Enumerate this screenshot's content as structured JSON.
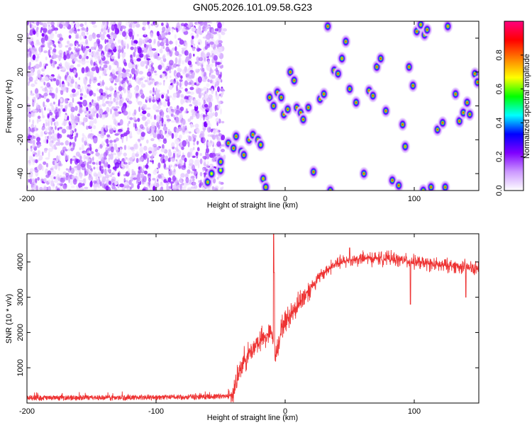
{
  "figure": {
    "title": "GN05.2026.101.09.58.G23"
  },
  "chart_data": [
    {
      "type": "heatmap",
      "name": "spectrogram",
      "xlabel": "Height of straight line (km)",
      "ylabel": "Frequency (Hz)",
      "xlim": [
        -200,
        150
      ],
      "ylim": [
        -50,
        50
      ],
      "xticks": [
        -200,
        -100,
        0,
        100
      ],
      "xtick_labels": [
        "-200",
        "-100",
        "0",
        "100"
      ],
      "yticks": [
        -40,
        -20,
        0,
        20,
        40
      ],
      "ytick_labels": [
        "-40",
        "-20",
        "0",
        "20",
        "40"
      ],
      "colorbar": {
        "label": "Normalized spectral amplitude",
        "range": [
          0,
          1
        ],
        "ticks": [
          0,
          0.2,
          0.4,
          0.6,
          0.8
        ],
        "tick_labels": [
          "0.0",
          "0.2",
          "0.4",
          "0.6",
          "0.8"
        ],
        "colormap": [
          "#ffffff",
          "#cc99ff",
          "#8000ff",
          "#0000ff",
          "#00ffff",
          "#00ff00",
          "#ffff00",
          "#ff8000",
          "#ff0000",
          "#ff0080"
        ]
      },
      "noise_region_x": [
        -200,
        -48
      ],
      "blobs": [
        {
          "x": -60,
          "y": -45,
          "v": 0.35
        },
        {
          "x": -57,
          "y": -40,
          "v": 0.3
        },
        {
          "x": -50,
          "y": -38,
          "v": 0.3
        },
        {
          "x": -50,
          "y": -33,
          "v": 0.35
        },
        {
          "x": -44,
          "y": -22,
          "v": 0.55
        },
        {
          "x": -40,
          "y": -25,
          "v": 0.5
        },
        {
          "x": -38,
          "y": -18,
          "v": 0.5
        },
        {
          "x": -34,
          "y": -27,
          "v": 0.55
        },
        {
          "x": -32,
          "y": -29,
          "v": 0.6
        },
        {
          "x": -28,
          "y": -20,
          "v": 0.5
        },
        {
          "x": -25,
          "y": -17,
          "v": 0.5
        },
        {
          "x": -21,
          "y": -20,
          "v": 0.5
        },
        {
          "x": -19,
          "y": -23,
          "v": 0.45
        },
        {
          "x": -17,
          "y": -43,
          "v": 0.35
        },
        {
          "x": -15,
          "y": -48,
          "v": 0.35
        },
        {
          "x": -12,
          "y": 5,
          "v": 0.5
        },
        {
          "x": -9,
          "y": 0,
          "v": 0.55
        },
        {
          "x": -6,
          "y": 8,
          "v": 0.5
        },
        {
          "x": -3,
          "y": 5,
          "v": 0.5
        },
        {
          "x": -1,
          "y": -5,
          "v": 0.55
        },
        {
          "x": 2,
          "y": -2,
          "v": 0.5
        },
        {
          "x": 4,
          "y": 20,
          "v": 0.5
        },
        {
          "x": 7,
          "y": 15,
          "v": 0.55
        },
        {
          "x": 9,
          "y": -1,
          "v": 0.5
        },
        {
          "x": 12,
          "y": -4,
          "v": 0.55
        },
        {
          "x": 14,
          "y": -8,
          "v": 0.5
        },
        {
          "x": 18,
          "y": -1,
          "v": 0.5
        },
        {
          "x": 22,
          "y": -39,
          "v": 0.6
        },
        {
          "x": 27,
          "y": 4,
          "v": 0.5
        },
        {
          "x": 30,
          "y": 7,
          "v": 0.55
        },
        {
          "x": 33,
          "y": 47,
          "v": 0.5
        },
        {
          "x": 35,
          "y": -50,
          "v": 0.5
        },
        {
          "x": 38,
          "y": 21,
          "v": 0.5
        },
        {
          "x": 41,
          "y": 19,
          "v": 0.55
        },
        {
          "x": 44,
          "y": 28,
          "v": 0.45
        },
        {
          "x": 47,
          "y": 38,
          "v": 0.5
        },
        {
          "x": 50,
          "y": 10,
          "v": 0.6
        },
        {
          "x": 55,
          "y": 2,
          "v": 0.55
        },
        {
          "x": 61,
          "y": -40,
          "v": 0.65
        },
        {
          "x": 65,
          "y": 9,
          "v": 0.5
        },
        {
          "x": 68,
          "y": 6,
          "v": 0.5
        },
        {
          "x": 71,
          "y": 23,
          "v": 0.5
        },
        {
          "x": 74,
          "y": 28,
          "v": 0.5
        },
        {
          "x": 78,
          "y": -3,
          "v": 0.6
        },
        {
          "x": 83,
          "y": -44,
          "v": 0.6
        },
        {
          "x": 88,
          "y": -47,
          "v": 0.6
        },
        {
          "x": 91,
          "y": -11,
          "v": 0.5
        },
        {
          "x": 93,
          "y": -24,
          "v": 0.45
        },
        {
          "x": 96,
          "y": 23,
          "v": 0.5
        },
        {
          "x": 99,
          "y": 12,
          "v": 0.5
        },
        {
          "x": 102,
          "y": 44,
          "v": 0.5
        },
        {
          "x": 105,
          "y": 48,
          "v": 0.45
        },
        {
          "x": 108,
          "y": 42,
          "v": 0.55
        },
        {
          "x": 110,
          "y": 45,
          "v": 0.5
        },
        {
          "x": 107,
          "y": -50,
          "v": 0.4
        },
        {
          "x": 113,
          "y": -48,
          "v": 0.6
        },
        {
          "x": 118,
          "y": -14,
          "v": 0.5
        },
        {
          "x": 122,
          "y": -10,
          "v": 0.5
        },
        {
          "x": 124,
          "y": -48,
          "v": 0.5
        },
        {
          "x": 126,
          "y": 47,
          "v": 0.45
        },
        {
          "x": 132,
          "y": 7,
          "v": 0.5
        },
        {
          "x": 135,
          "y": -9,
          "v": 0.5
        },
        {
          "x": 138,
          "y": -4,
          "v": 0.55
        },
        {
          "x": 141,
          "y": 2,
          "v": 0.5
        },
        {
          "x": 143,
          "y": -5,
          "v": 0.55
        },
        {
          "x": 147,
          "y": 19,
          "v": 0.55
        },
        {
          "x": 149,
          "y": 14,
          "v": 0.5
        }
      ]
    },
    {
      "type": "line",
      "name": "snr",
      "xlabel": "Height of straight line (km)",
      "ylabel": "SNR (10 * v/v)",
      "xlim": [
        -200,
        150
      ],
      "ylim": [
        0,
        4800
      ],
      "xticks": [
        -200,
        -100,
        0,
        100
      ],
      "xtick_labels": [
        "-200",
        "-100",
        "0",
        "100"
      ],
      "yticks": [
        1000,
        2000,
        3000,
        4000
      ],
      "ytick_labels": [
        "1000",
        "2000",
        "3000",
        "4000"
      ],
      "color": "#ee3333",
      "x": [
        -200,
        -150,
        -100,
        -60,
        -42,
        -38,
        -34,
        -30,
        -26,
        -22,
        -18,
        -14,
        -10,
        -8,
        -6,
        -4,
        -2,
        0,
        4,
        8,
        12,
        16,
        20,
        25,
        30,
        35,
        40,
        50,
        60,
        70,
        80,
        90,
        100,
        110,
        120,
        130,
        140,
        150
      ],
      "y": [
        150,
        150,
        160,
        180,
        200,
        500,
        1100,
        1300,
        1500,
        1700,
        1800,
        1900,
        2000,
        1300,
        1600,
        1900,
        2200,
        2300,
        2500,
        2700,
        2900,
        3100,
        3300,
        3500,
        3700,
        3850,
        3950,
        4050,
        4100,
        4100,
        4100,
        4050,
        4000,
        3950,
        3900,
        3900,
        3850,
        3800
      ],
      "spikes": [
        {
          "x": -9,
          "y": 4800
        },
        {
          "x": -8.5,
          "y": 3700
        },
        {
          "x": 50,
          "y": 4400
        },
        {
          "x": 97,
          "y": 2800
        },
        {
          "x": 140,
          "y": 3000
        }
      ]
    }
  ]
}
